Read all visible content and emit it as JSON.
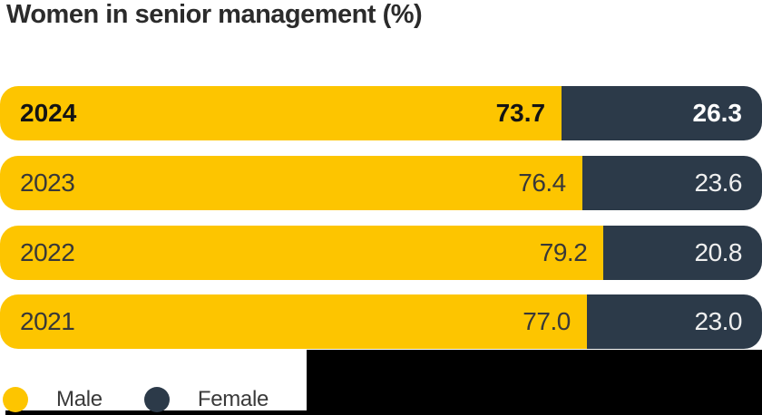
{
  "title": "Women in senior management (%)",
  "colors": {
    "male": "#FDC500",
    "female": "#2C3A49",
    "title_text": "#2b2b2b",
    "background": "#ffffff",
    "cropped_region": "#000000"
  },
  "chart_data": {
    "type": "bar",
    "orientation": "horizontal",
    "stacked": true,
    "title": "Women in senior management (%)",
    "categories": [
      "2024",
      "2023",
      "2022",
      "2021"
    ],
    "series": [
      {
        "name": "Male",
        "color": "#FDC500",
        "values": [
          73.7,
          76.4,
          79.2,
          77.0
        ]
      },
      {
        "name": "Female",
        "color": "#2C3A49",
        "values": [
          26.3,
          23.6,
          20.8,
          23.0
        ]
      }
    ],
    "value_range": [
      0,
      100
    ],
    "grid": false,
    "legend_position": "bottom-left",
    "highlighted_category": "2024"
  },
  "rows": [
    {
      "year": "2024",
      "male": 73.7,
      "female": 26.3,
      "male_label": "73.7",
      "female_label": "26.3",
      "emphasis": true
    },
    {
      "year": "2023",
      "male": 76.4,
      "female": 23.6,
      "male_label": "76.4",
      "female_label": "23.6",
      "emphasis": false
    },
    {
      "year": "2022",
      "male": 79.2,
      "female": 20.8,
      "male_label": "79.2",
      "female_label": "20.8",
      "emphasis": false
    },
    {
      "year": "2021",
      "male": 77.0,
      "female": 23.0,
      "male_label": "77.0",
      "female_label": "23.0",
      "emphasis": false
    }
  ],
  "legend": {
    "items": [
      {
        "label": "Male",
        "color": "#FDC500"
      },
      {
        "label": "Female",
        "color": "#2C3A49"
      }
    ]
  }
}
